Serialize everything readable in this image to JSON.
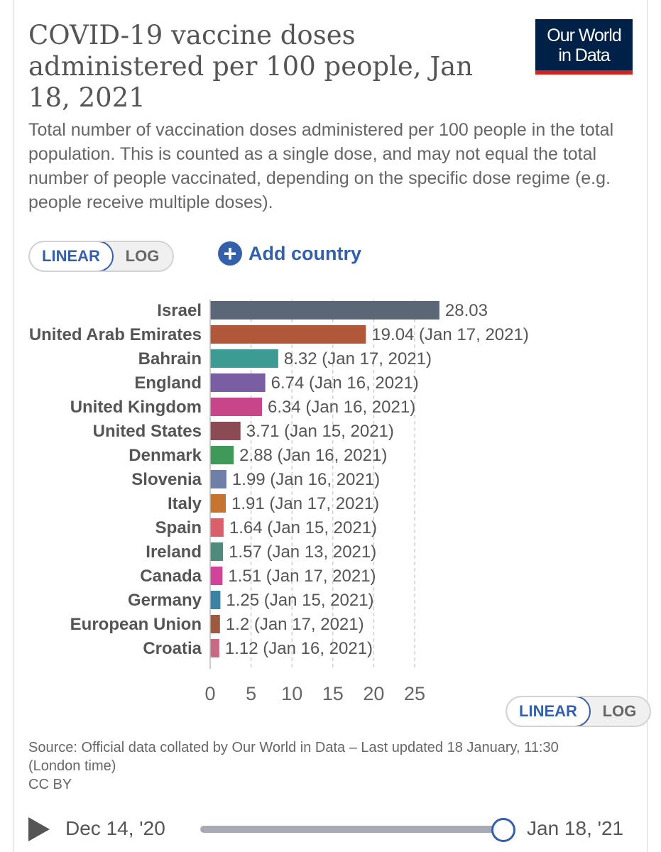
{
  "header": {
    "title": "COVID-19 vaccine doses administered per 100 people, Jan 18, 2021",
    "subtitle": "Total number of vaccination doses administered per 100 people in the total population. This is counted as a single dose, and may not equal the total number of people vaccinated, depending on the specific dose regime (e.g. people receive multiple doses).",
    "logo_line1": "Our World",
    "logo_line2": "in Data"
  },
  "controls": {
    "linear_label": "LINEAR",
    "log_label": "LOG",
    "add_country_label": "Add country",
    "add_icon": "plus-circle-icon"
  },
  "chart_data": {
    "type": "bar",
    "orientation": "horizontal",
    "title": "COVID-19 vaccine doses administered per 100 people, Jan 18, 2021",
    "xlabel": "",
    "ylabel": "",
    "xlim": [
      0,
      28.03
    ],
    "xticks": [
      0,
      5,
      10,
      15,
      20,
      25
    ],
    "grid": true,
    "categories": [
      "Israel",
      "United Arab Emirates",
      "Bahrain",
      "England",
      "United Kingdom",
      "United States",
      "Denmark",
      "Slovenia",
      "Italy",
      "Spain",
      "Ireland",
      "Canada",
      "Germany",
      "European Union",
      "Croatia"
    ],
    "values": [
      28.03,
      19.04,
      8.32,
      6.74,
      6.34,
      3.71,
      2.88,
      1.99,
      1.91,
      1.64,
      1.57,
      1.51,
      1.25,
      1.2,
      1.12
    ],
    "value_labels": [
      "28.03",
      "19.04 (Jan 17, 2021)",
      "8.32 (Jan 17, 2021)",
      "6.74 (Jan 16, 2021)",
      "6.34 (Jan 16, 2021)",
      "3.71 (Jan 15, 2021)",
      "2.88 (Jan 16, 2021)",
      "1.99 (Jan 16, 2021)",
      "1.91 (Jan 17, 2021)",
      "1.64 (Jan 15, 2021)",
      "1.57 (Jan 13, 2021)",
      "1.51 (Jan 17, 2021)",
      "1.25 (Jan 15, 2021)",
      "1.2 (Jan 17, 2021)",
      "1.12 (Jan 16, 2021)"
    ],
    "colors": [
      "#5b6677",
      "#b1573a",
      "#3c9b92",
      "#7a5ea3",
      "#c8458a",
      "#8b4b55",
      "#3f9a59",
      "#6f7fa8",
      "#c57432",
      "#d95f6b",
      "#4f8a7d",
      "#d0449b",
      "#3b83a5",
      "#9c5b3e",
      "#c86b82"
    ]
  },
  "footer": {
    "source": "Source: Official data collated by Our World in Data – Last updated 18 January, 11:30 (London time)",
    "license": "CC BY"
  },
  "timeline": {
    "start_label": "Dec 14, '20",
    "end_label": "Jan 18, '21",
    "position": 1.0
  }
}
